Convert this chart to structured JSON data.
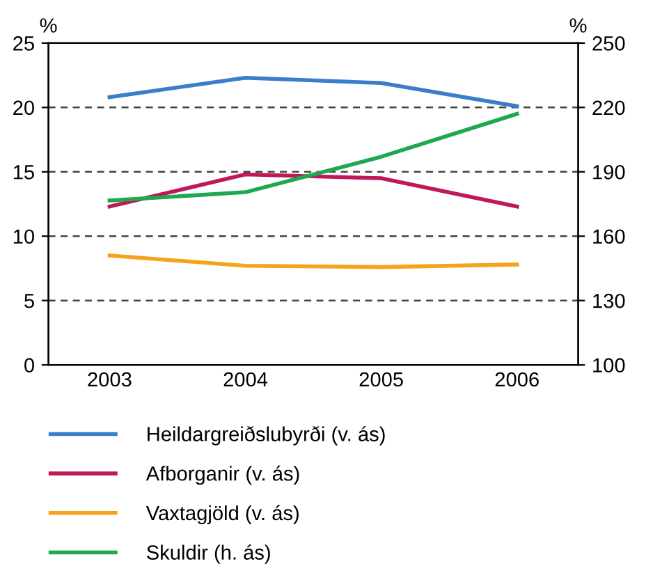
{
  "chart_data": {
    "type": "line",
    "ylabel": "%",
    "y2label": "%",
    "categories": [
      "2003",
      "2004",
      "2005",
      "2006"
    ],
    "series": [
      {
        "name": "Heildargreiðslubyrði (v. ás)",
        "color": "#3a7dc9",
        "values": [
          20.8,
          22.3,
          21.9,
          20.1
        ]
      },
      {
        "name": "Afborganir (v. ás)",
        "color": "#c0185a",
        "values": [
          12.3,
          14.8,
          14.5,
          12.3
        ]
      },
      {
        "name": "Vaxtagjöld (v. ás)",
        "color": "#f5a31a",
        "values": [
          8.5,
          7.7,
          7.6,
          7.8
        ]
      },
      {
        "name": "Skuldir (h. ás)",
        "color": "#1fa84f",
        "values": [
          176.6,
          180.5,
          197,
          217
        ],
        "axis": "y2"
      }
    ],
    "ylim": [
      0,
      25
    ],
    "yticks": [
      0,
      5,
      10,
      15,
      20,
      25
    ],
    "y2lim": [
      100,
      250
    ],
    "y2ticks": [
      100,
      130,
      160,
      190,
      220,
      250
    ],
    "grid": "y",
    "legend": "bottom",
    "marker": "none",
    "line_style": "solid"
  }
}
